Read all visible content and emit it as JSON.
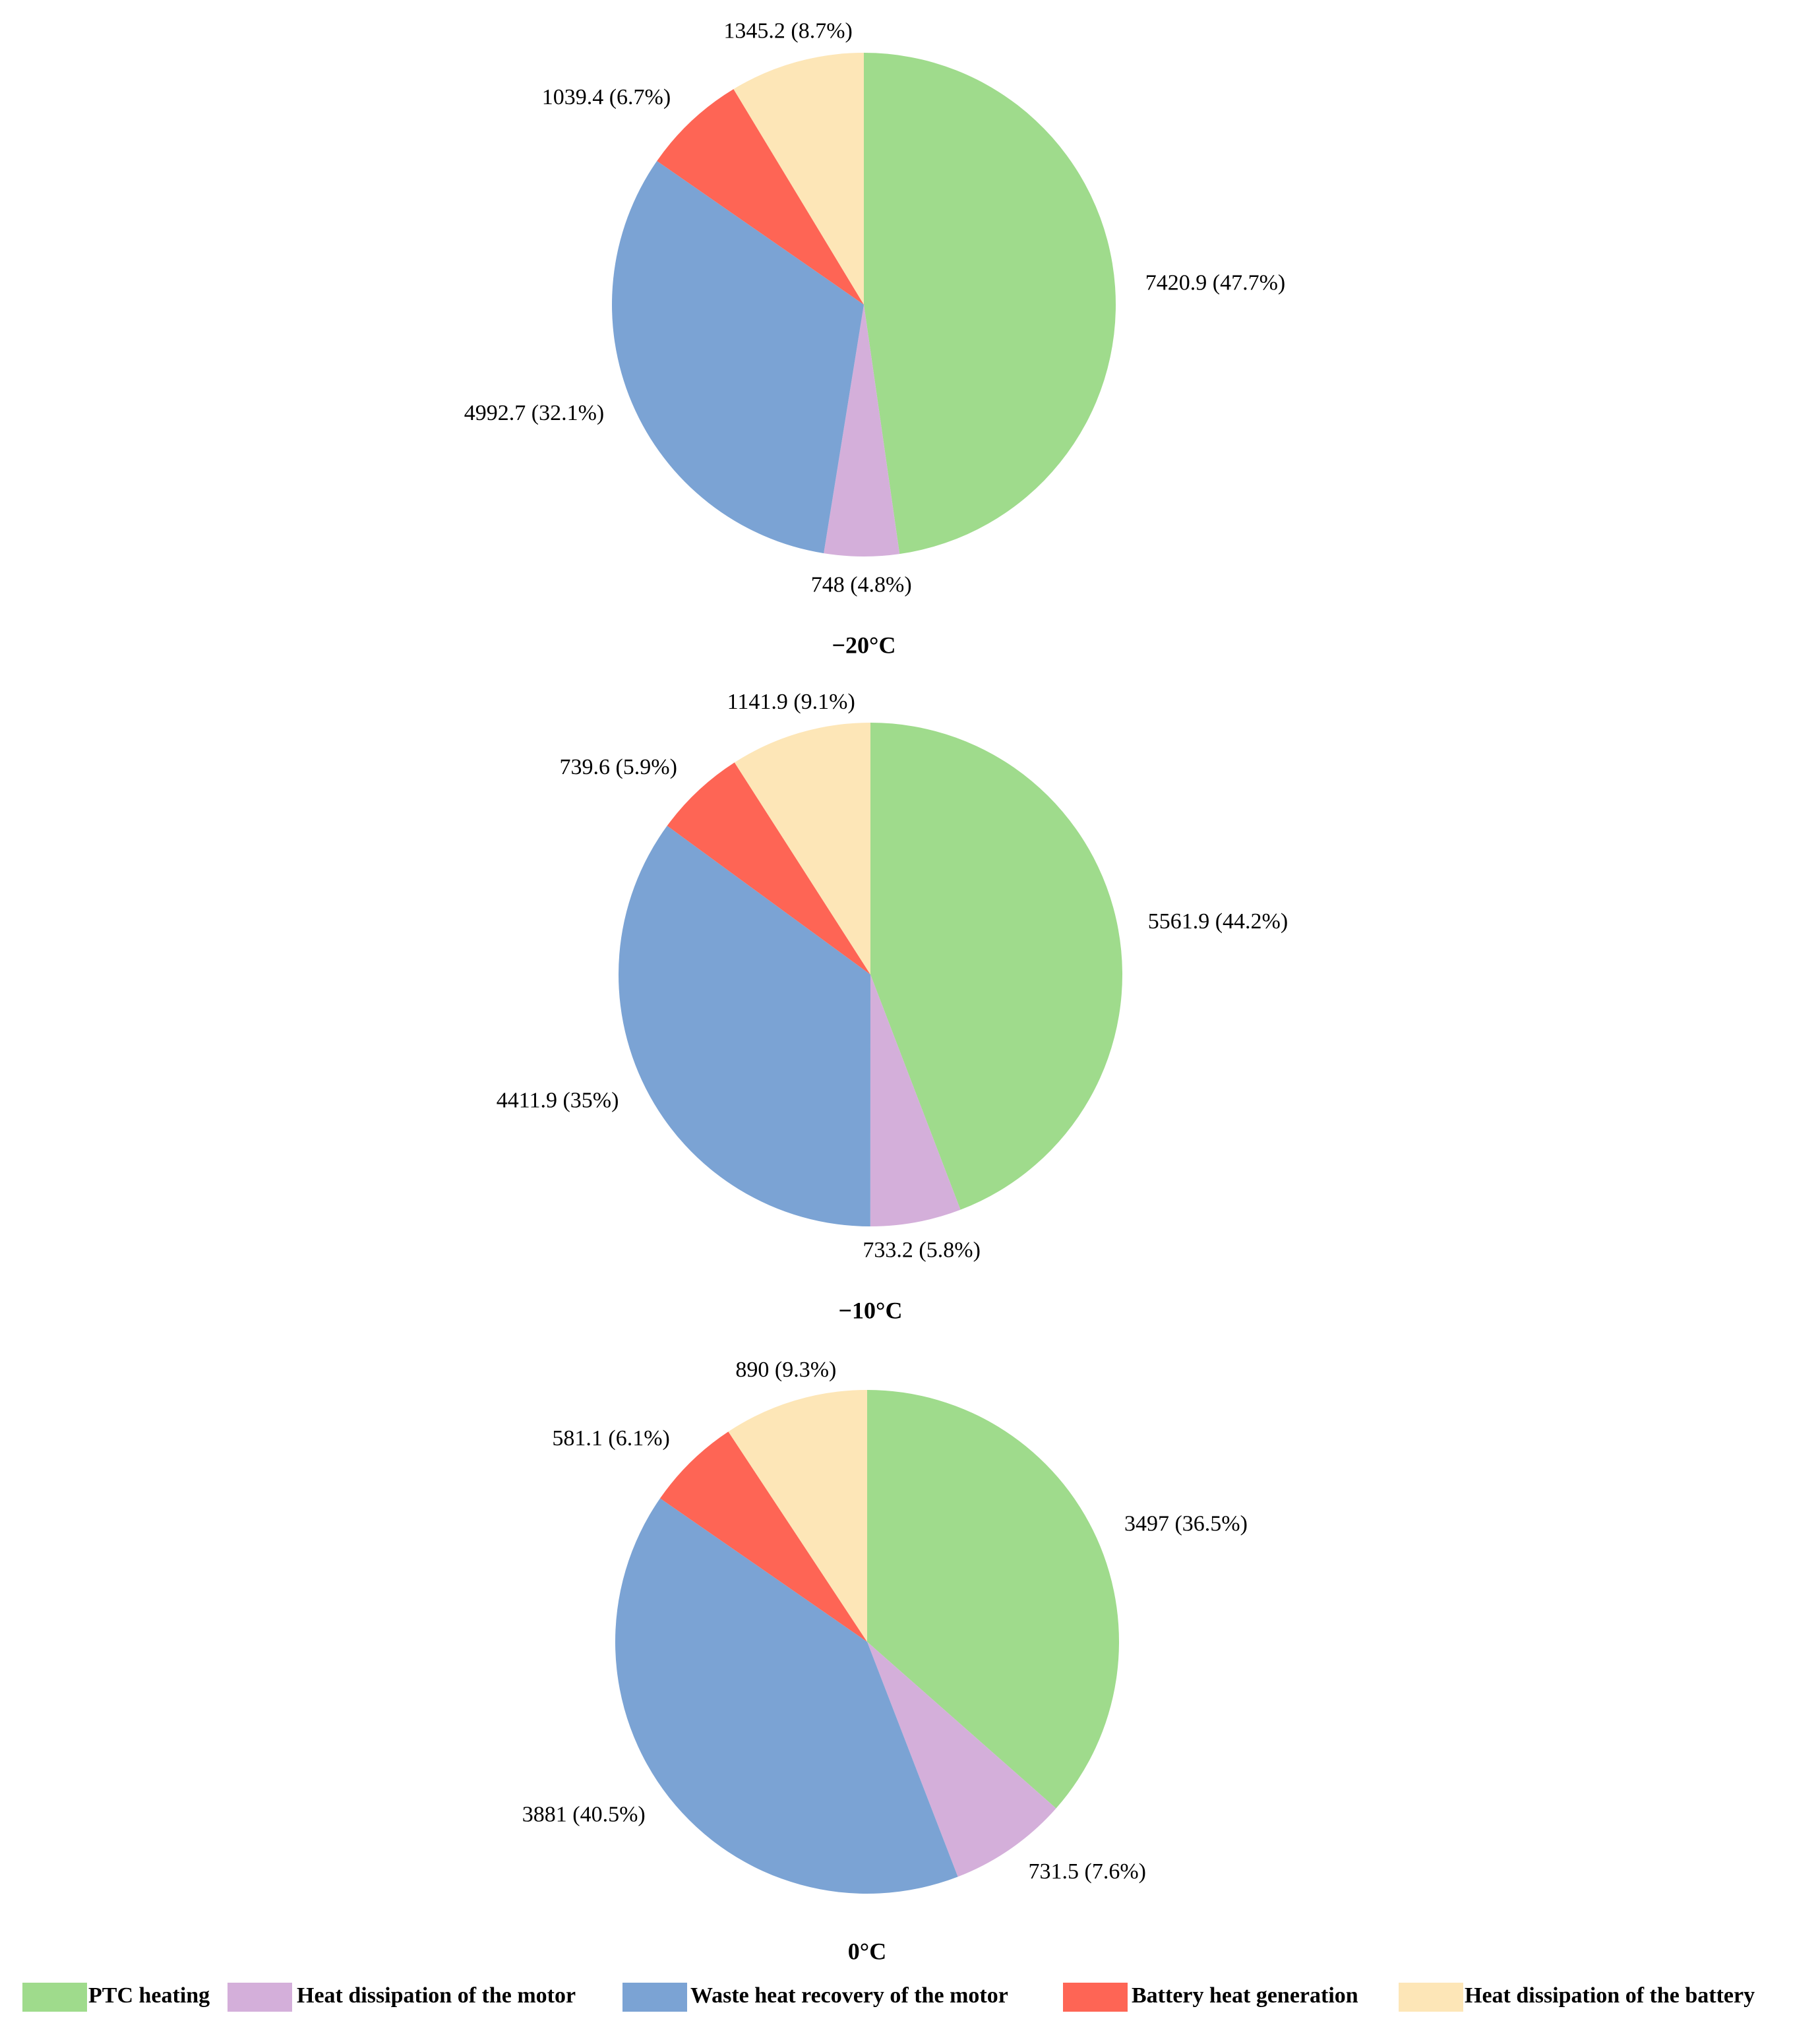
{
  "chart_data": [
    {
      "type": "pie",
      "title": "−20°C",
      "categories": [
        "PTC heating",
        "Heat dissipation of the motor",
        "Waste heat recovery of the motor",
        "Battery heat generation",
        "Heat dissipation of the battery"
      ],
      "values": [
        7420.9,
        748,
        4992.7,
        1039.4,
        1345.2
      ],
      "labels": [
        "7420.9 (47.7%)",
        "748 (4.8%)",
        "4992.7 (32.1%)",
        "1039.4 (6.7%)",
        "1345.2 (8.7%)"
      ]
    },
    {
      "type": "pie",
      "title": "−10°C",
      "categories": [
        "PTC heating",
        "Heat dissipation of the motor",
        "Waste heat recovery of the motor",
        "Battery heat generation",
        "Heat dissipation of the battery"
      ],
      "values": [
        5561.9,
        733.2,
        4411.9,
        739.6,
        1141.9
      ],
      "labels": [
        "5561.9 (44.2%)",
        "733.2 (5.8%)",
        "4411.9 (35%)",
        "739.6 (5.9%)",
        "1141.9 (9.1%)"
      ]
    },
    {
      "type": "pie",
      "title": "0°C",
      "categories": [
        "PTC heating",
        "Heat dissipation of the motor",
        "Waste heat recovery of the motor",
        "Battery heat generation",
        "Heat dissipation of the battery"
      ],
      "values": [
        3497,
        731.5,
        3881,
        581.1,
        890
      ],
      "labels": [
        "3497 (36.5%)",
        "731.5 (7.6%)",
        "3881 (40.5%)",
        "581.1 (6.1%)",
        "890 (9.3%)"
      ]
    }
  ],
  "legend": {
    "placement": "bottom",
    "items": [
      {
        "label": "PTC heating",
        "color": "#9fdb8c"
      },
      {
        "label": "Heat dissipation of the motor",
        "color": "#d4afda"
      },
      {
        "label": "Waste heat recovery of the motor",
        "color": "#7ba3d4"
      },
      {
        "label": "Battery heat generation",
        "color": "#fe6555"
      },
      {
        "label": "Heat dissipation of the battery",
        "color": "#fde6b7"
      }
    ]
  }
}
